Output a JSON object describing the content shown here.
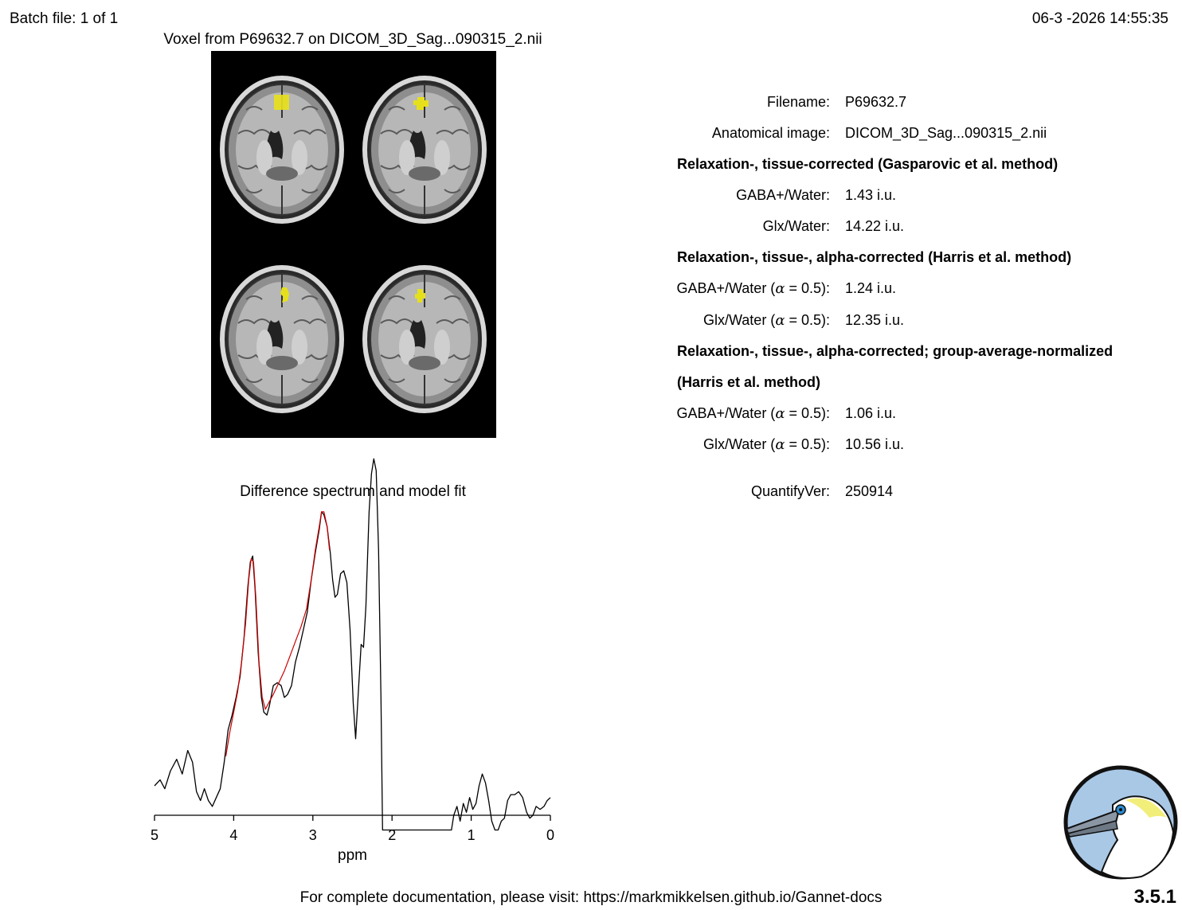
{
  "header": {
    "batch": "Batch file: 1 of 1",
    "datetime": "06-3 -2026 14:55:35"
  },
  "voxel_panel": {
    "title": "Voxel from P69632.7 on DICOM_3D_Sag...090315_2.nii",
    "overlay_color": "#e6e01c"
  },
  "results": {
    "filename_label": "Filename:",
    "filename_value": "P69632.7",
    "anat_label": "Anatomical image:",
    "anat_value": "DICOM_3D_Sag...090315_2.nii",
    "section1": "Relaxation-, tissue-corrected (Gasparovic et al. method)",
    "s1_gaba_label": "GABA+/Water:",
    "s1_gaba_value": "1.43 i.u.",
    "s1_glx_label": "Glx/Water:",
    "s1_glx_value": "14.22 i.u.",
    "section2": "Relaxation-, tissue-, alpha-corrected (Harris et al. method)",
    "s2_gaba_label": "GABA+/Water (",
    "s2_glx_label": "Glx/Water (",
    "alpha_symbol": "α",
    "alpha_suffix": " = 0.5):",
    "s2_gaba_value": "1.24 i.u.",
    "s2_glx_value": "12.35 i.u.",
    "section3_line1": "Relaxation-, tissue-, alpha-corrected; group-average-normalized",
    "section3_line2": "(Harris et al. method)",
    "s3_gaba_value": "1.06 i.u.",
    "s3_glx_value": "10.56 i.u.",
    "quantify_label": "QuantifyVer:",
    "quantify_value": "250914"
  },
  "chart_data": {
    "type": "line",
    "title": "Difference spectrum and model fit",
    "xlabel": "ppm",
    "ylabel": "",
    "xlim": [
      5,
      0
    ],
    "x_reversed": true,
    "xticks": [
      5,
      4,
      3,
      2,
      1,
      0
    ],
    "grid": false,
    "legend": "none",
    "series": [
      {
        "color": "#000000",
        "points": [
          [
            5.0,
            0.1
          ],
          [
            4.93,
            0.12
          ],
          [
            4.87,
            0.09
          ],
          [
            4.8,
            0.15
          ],
          [
            4.72,
            0.19
          ],
          [
            4.65,
            0.14
          ],
          [
            4.58,
            0.22
          ],
          [
            4.52,
            0.18
          ],
          [
            4.47,
            0.08
          ],
          [
            4.42,
            0.05
          ],
          [
            4.37,
            0.09
          ],
          [
            4.32,
            0.05
          ],
          [
            4.27,
            0.03
          ],
          [
            4.22,
            0.06
          ],
          [
            4.17,
            0.09
          ],
          [
            4.12,
            0.18
          ],
          [
            4.07,
            0.29
          ],
          [
            4.02,
            0.34
          ],
          [
            3.97,
            0.4
          ],
          [
            3.92,
            0.47
          ],
          [
            3.87,
            0.6
          ],
          [
            3.82,
            0.78
          ],
          [
            3.79,
            0.86
          ],
          [
            3.76,
            0.88
          ],
          [
            3.73,
            0.77
          ],
          [
            3.69,
            0.55
          ],
          [
            3.65,
            0.4
          ],
          [
            3.62,
            0.35
          ],
          [
            3.58,
            0.34
          ],
          [
            3.55,
            0.37
          ],
          [
            3.5,
            0.44
          ],
          [
            3.45,
            0.45
          ],
          [
            3.4,
            0.44
          ],
          [
            3.36,
            0.4
          ],
          [
            3.32,
            0.41
          ],
          [
            3.27,
            0.44
          ],
          [
            3.22,
            0.52
          ],
          [
            3.17,
            0.57
          ],
          [
            3.12,
            0.63
          ],
          [
            3.07,
            0.69
          ],
          [
            3.02,
            0.8
          ],
          [
            2.97,
            0.89
          ],
          [
            2.92,
            0.97
          ],
          [
            2.89,
            1.03
          ],
          [
            2.86,
            1.02
          ],
          [
            2.82,
            0.98
          ],
          [
            2.78,
            0.89
          ],
          [
            2.75,
            0.8
          ],
          [
            2.72,
            0.74
          ],
          [
            2.69,
            0.75
          ],
          [
            2.65,
            0.82
          ],
          [
            2.61,
            0.83
          ],
          [
            2.57,
            0.79
          ],
          [
            2.53,
            0.63
          ],
          [
            2.49,
            0.38
          ],
          [
            2.46,
            0.26
          ],
          [
            2.43,
            0.4
          ],
          [
            2.39,
            0.58
          ],
          [
            2.36,
            0.57
          ],
          [
            2.33,
            0.71
          ],
          [
            2.29,
            1.03
          ],
          [
            2.26,
            1.16
          ],
          [
            2.23,
            1.21
          ],
          [
            2.2,
            1.17
          ],
          [
            2.17,
            0.9
          ],
          [
            2.14,
            0.4
          ],
          [
            2.12,
            -0.05
          ],
          [
            1.25,
            -0.05
          ],
          [
            1.22,
            0.0
          ],
          [
            1.18,
            0.03
          ],
          [
            1.14,
            -0.02
          ],
          [
            1.1,
            0.04
          ],
          [
            1.06,
            0.01
          ],
          [
            1.02,
            0.06
          ],
          [
            0.98,
            0.02
          ],
          [
            0.94,
            0.04
          ],
          [
            0.9,
            0.1
          ],
          [
            0.86,
            0.14
          ],
          [
            0.82,
            0.11
          ],
          [
            0.78,
            0.05
          ],
          [
            0.74,
            -0.02
          ],
          [
            0.7,
            -0.05
          ],
          [
            0.66,
            -0.05
          ],
          [
            0.62,
            -0.02
          ],
          [
            0.58,
            -0.01
          ],
          [
            0.54,
            0.05
          ],
          [
            0.5,
            0.07
          ],
          [
            0.45,
            0.07
          ],
          [
            0.4,
            0.08
          ],
          [
            0.35,
            0.06
          ],
          [
            0.3,
            0.01
          ],
          [
            0.26,
            -0.01
          ],
          [
            0.22,
            0.0
          ],
          [
            0.18,
            0.03
          ],
          [
            0.13,
            0.02
          ],
          [
            0.08,
            0.03
          ],
          [
            0.04,
            0.05
          ],
          [
            0.0,
            0.06
          ]
        ]
      },
      {
        "color": "#cc0000",
        "points": [
          [
            4.1,
            0.2
          ],
          [
            4.05,
            0.28
          ],
          [
            4.0,
            0.35
          ],
          [
            3.95,
            0.42
          ],
          [
            3.9,
            0.52
          ],
          [
            3.85,
            0.65
          ],
          [
            3.81,
            0.8
          ],
          [
            3.78,
            0.87
          ],
          [
            3.75,
            0.86
          ],
          [
            3.72,
            0.74
          ],
          [
            3.68,
            0.52
          ],
          [
            3.64,
            0.4
          ],
          [
            3.6,
            0.36
          ],
          [
            3.56,
            0.38
          ],
          [
            3.5,
            0.41
          ],
          [
            3.43,
            0.45
          ],
          [
            3.36,
            0.49
          ],
          [
            3.29,
            0.54
          ],
          [
            3.22,
            0.59
          ],
          [
            3.15,
            0.64
          ],
          [
            3.08,
            0.7
          ],
          [
            3.02,
            0.8
          ],
          [
            2.97,
            0.9
          ],
          [
            2.92,
            0.98
          ],
          [
            2.89,
            1.03
          ],
          [
            2.86,
            1.03
          ],
          [
            2.82,
            0.98
          ],
          [
            2.79,
            0.9
          ]
        ]
      }
    ]
  },
  "footer": {
    "doc_text": "For complete documentation, please visit: https://markmikkelsen.github.io/Gannet-docs",
    "version": "3.5.1"
  }
}
